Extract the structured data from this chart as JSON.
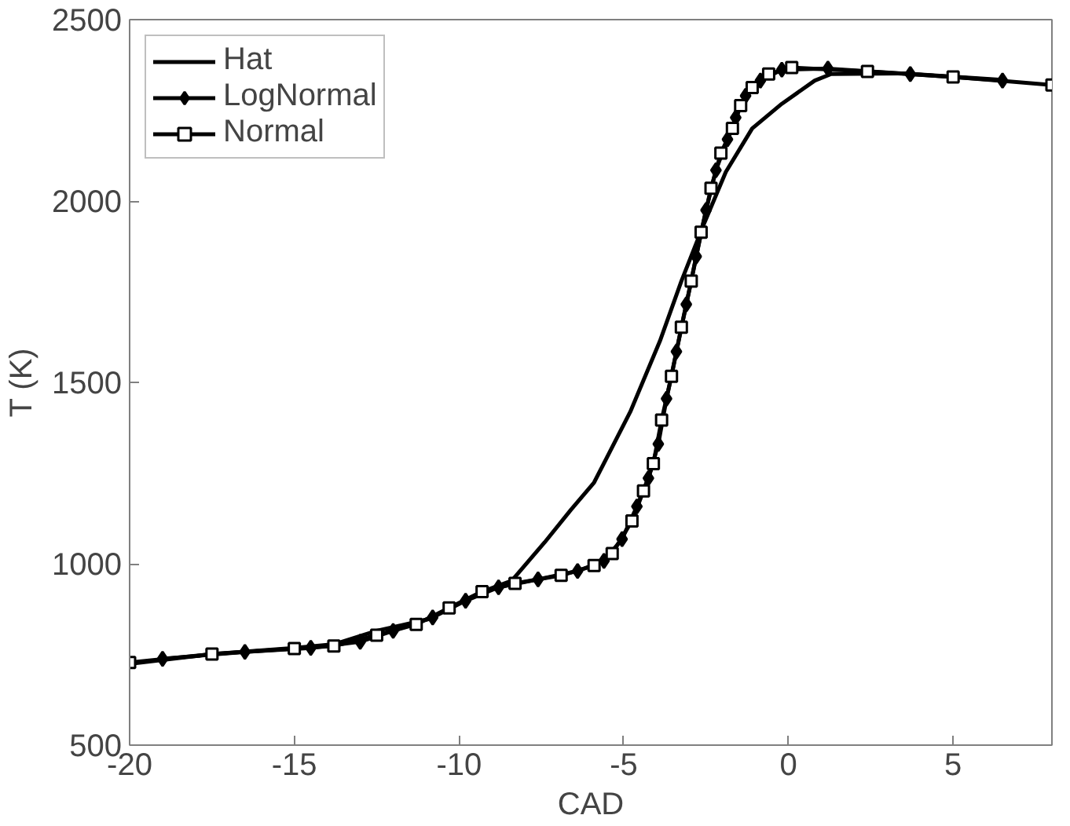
{
  "chart_data": {
    "type": "line",
    "xlabel": "CAD",
    "ylabel": "T (K)",
    "xlim": [
      -20,
      8
    ],
    "ylim": [
      500,
      2500
    ],
    "xticks": [
      -20,
      -15,
      -10,
      -5,
      0,
      5
    ],
    "yticks": [
      500,
      1000,
      1500,
      2000,
      2500
    ],
    "grid": false,
    "legend": "top left",
    "line_style": "solid",
    "series": [
      {
        "name": "Hat",
        "color": "#000000",
        "marker": "none",
        "x": [
          -20,
          -17.5,
          -15,
          -13.8,
          -12.5,
          -10.9,
          -10.3,
          -9.3,
          -8.4,
          -7.4,
          -6.6,
          -5.9,
          -4.8,
          -3.9,
          -3.25,
          -2.6,
          -1.9,
          -1.1,
          -0.2,
          0.8,
          1.3,
          3.5,
          6.5
        ],
        "values": [
          724,
          751,
          768,
          778,
          815,
          848,
          878,
          923,
          953,
          1059,
          1149,
          1224,
          1419,
          1614,
          1779,
          1929,
          2080,
          2200,
          2268,
          2332,
          2350,
          2352,
          2334
        ]
      },
      {
        "name": "LogNormal",
        "color": "#000000",
        "marker": "diamond",
        "x": [
          -19,
          -16.5,
          -14.5,
          -13,
          -12,
          -10.8,
          -9.8,
          -8.8,
          -7.6,
          -6.4,
          -5.6,
          -5.05,
          -4.6,
          -4.25,
          -3.95,
          -3.7,
          -3.4,
          -3.1,
          -2.8,
          -2.5,
          -2.2,
          -1.85,
          -1.6,
          -1.3,
          -0.85,
          -0.2,
          1.2,
          3.7,
          6.5
        ],
        "values": [
          738,
          757,
          768,
          785,
          815,
          852,
          898,
          935,
          957,
          980,
          1008,
          1068,
          1158,
          1236,
          1330,
          1455,
          1585,
          1715,
          1847,
          1975,
          2085,
          2170,
          2230,
          2290,
          2332,
          2362,
          2365,
          2350,
          2332
        ]
      },
      {
        "name": "Normal",
        "color": "#000000",
        "marker": "square",
        "x": [
          -20,
          -17.5,
          -15,
          -13.8,
          -12.5,
          -11.3,
          -10.3,
          -9.3,
          -8.3,
          -6.9,
          -5.9,
          -5.35,
          -4.75,
          -4.4,
          -4.1,
          -3.85,
          -3.55,
          -3.25,
          -2.95,
          -2.65,
          -2.35,
          -2.05,
          -1.7,
          -1.45,
          -1.1,
          -0.6,
          0.1,
          2.4,
          5,
          8
        ],
        "values": [
          728,
          751,
          766,
          773,
          803,
          833,
          878,
          923,
          946,
          968,
          995,
          1028,
          1118,
          1201,
          1276,
          1396,
          1517,
          1652,
          1779,
          1914,
          2035,
          2132,
          2200,
          2263,
          2313,
          2350,
          2368,
          2357,
          2342,
          2320
        ]
      }
    ]
  }
}
